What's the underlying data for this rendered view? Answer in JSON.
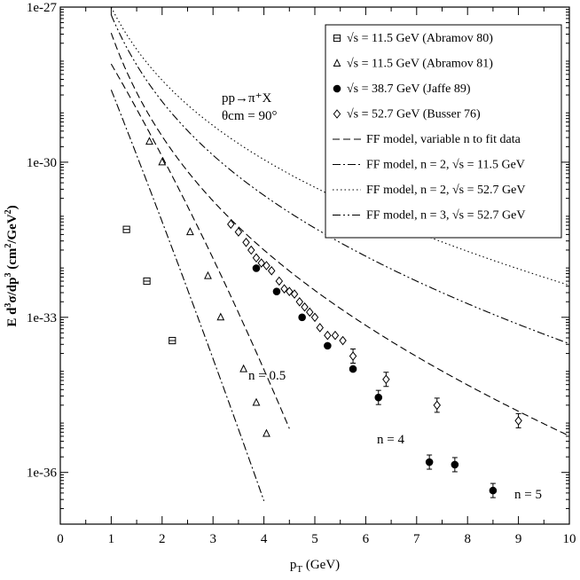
{
  "chart_data": {
    "type": "scatter",
    "title": "",
    "xlabel": "p_T (GeV)",
    "ylabel": "E d³σ/dp³ (cm²/GeV²)",
    "xlim": [
      0,
      10
    ],
    "ylim_log10": [
      -37,
      -27
    ],
    "x_ticks": [
      "0",
      "1",
      "2",
      "3",
      "4",
      "5",
      "6",
      "7",
      "8",
      "9",
      "10"
    ],
    "y_ticks": [
      {
        "label": "1e-27",
        "log10": -27
      },
      {
        "label": "1e-30",
        "log10": -30
      },
      {
        "label": "1e-33",
        "log10": -33
      },
      {
        "label": "1e-36",
        "log10": -36
      }
    ],
    "process_label": "pp→π⁺X",
    "angle_label": "θcm = 90°",
    "series": [
      {
        "name": "√s = 11.5 GeV (Abramov 80)",
        "marker": "square",
        "points": [
          [
            1.3,
            -31.3
          ],
          [
            1.7,
            -32.3
          ],
          [
            2.2,
            -33.45
          ]
        ]
      },
      {
        "name": "√s = 11.5 GeV (Abramov 81)",
        "marker": "triangle",
        "points": [
          [
            1.75,
            -29.6
          ],
          [
            2.0,
            -30.0
          ],
          [
            2.55,
            -31.35
          ],
          [
            2.9,
            -32.2
          ],
          [
            3.15,
            -33.0
          ],
          [
            3.6,
            -34.0
          ],
          [
            3.85,
            -34.65
          ],
          [
            4.05,
            -35.25
          ]
        ]
      },
      {
        "name": "√s = 38.7 GeV (Jaffe 89)",
        "marker": "filled-circle",
        "points": [
          [
            3.85,
            -32.05
          ],
          [
            4.25,
            -32.5
          ],
          [
            4.75,
            -33.0
          ],
          [
            5.25,
            -33.55
          ],
          [
            5.75,
            -34.0
          ],
          [
            6.25,
            -34.55
          ],
          [
            7.25,
            -35.8
          ],
          [
            7.75,
            -35.85
          ],
          [
            8.5,
            -36.35
          ]
        ]
      },
      {
        "name": "√s = 52.7 GeV (Busser 76)",
        "marker": "open-diamond",
        "points": [
          [
            3.35,
            -31.2
          ],
          [
            3.5,
            -31.35
          ],
          [
            3.65,
            -31.55
          ],
          [
            3.75,
            -31.7
          ],
          [
            3.85,
            -31.85
          ],
          [
            3.95,
            -31.95
          ],
          [
            4.05,
            -32.0
          ],
          [
            4.15,
            -32.1
          ],
          [
            4.3,
            -32.3
          ],
          [
            4.4,
            -32.45
          ],
          [
            4.5,
            -32.5
          ],
          [
            4.6,
            -32.55
          ],
          [
            4.7,
            -32.7
          ],
          [
            4.8,
            -32.8
          ],
          [
            4.9,
            -32.9
          ],
          [
            5.0,
            -33.0
          ],
          [
            5.1,
            -33.2
          ],
          [
            5.25,
            -33.35
          ],
          [
            5.4,
            -33.35
          ],
          [
            5.55,
            -33.45
          ],
          [
            5.75,
            -33.75
          ],
          [
            6.4,
            -34.2
          ],
          [
            7.4,
            -34.7
          ],
          [
            9.0,
            -35.0
          ]
        ]
      }
    ],
    "curves": [
      {
        "name": "FF model, variable n to fit data",
        "dash": "dashed",
        "annotations": [
          "n = 0.5",
          "n = 4",
          "n = 5"
        ]
      },
      {
        "name": "FF model, n = 2, √s = 11.5 GeV",
        "dash": "dash-dot"
      },
      {
        "name": "FF model, n = 2, √s = 52.7 GeV",
        "dash": "dotted"
      },
      {
        "name": "FF model, n = 3, √s = 52.7 GeV",
        "dash": "dash-dot-dot"
      }
    ],
    "annotations": {
      "n_half": "n = 0.5",
      "n_four": "n = 4",
      "n_five": "n = 5"
    },
    "legend_position": "top-right"
  }
}
